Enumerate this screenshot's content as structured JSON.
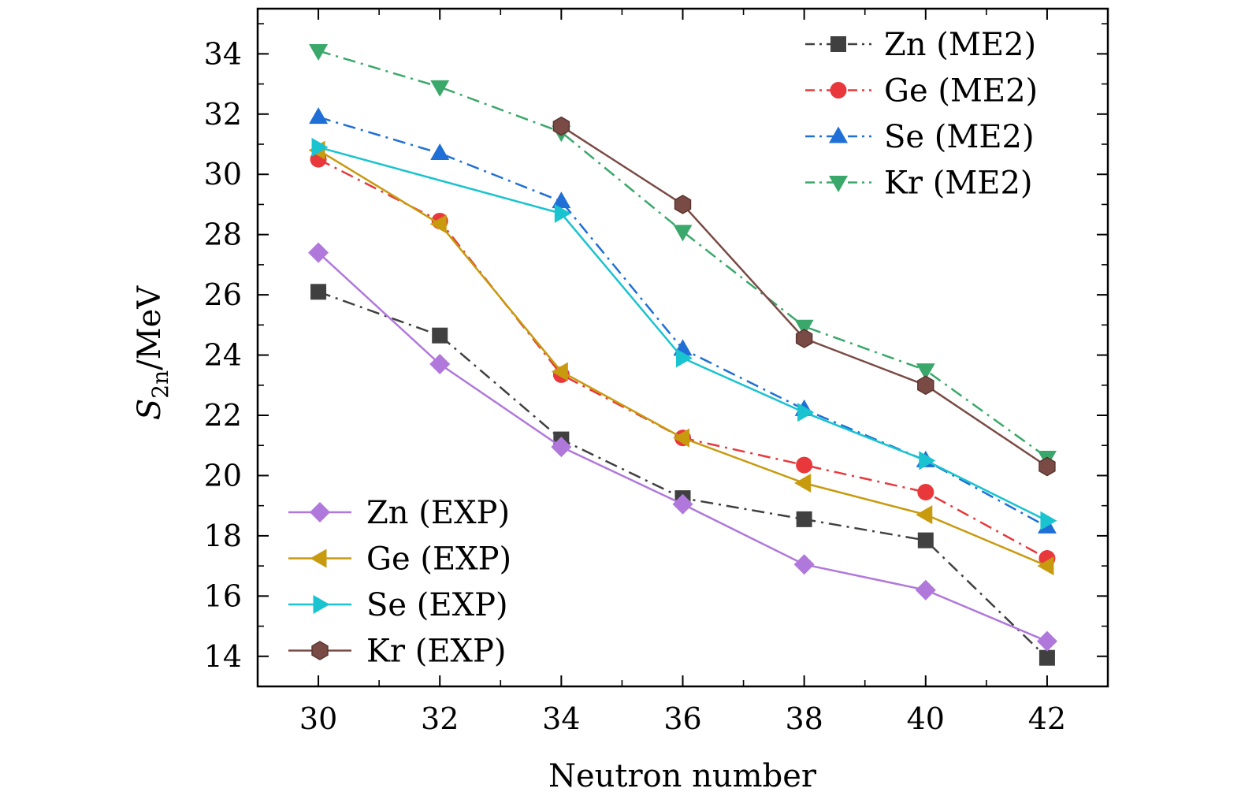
{
  "chart_data": {
    "type": "line",
    "xlabel": "Neutron number",
    "ylabel": {
      "main": "S",
      "sub": "2n",
      "unit": "/MeV"
    },
    "xlim": [
      29,
      43
    ],
    "ylim": [
      13,
      35.5
    ],
    "xticks": [
      30,
      32,
      34,
      36,
      38,
      40,
      42
    ],
    "yticks": [
      14,
      16,
      18,
      20,
      22,
      24,
      26,
      28,
      30,
      32,
      34
    ],
    "x": [
      30,
      32,
      34,
      36,
      38,
      40,
      42
    ],
    "grid": false,
    "legends": [
      {
        "placement": "top-right",
        "entries": [
          "Zn (ME2)",
          "Ge (ME2)",
          "Se (ME2)",
          "Kr (ME2)"
        ]
      },
      {
        "placement": "bottom-left",
        "entries": [
          "Zn (EXP)",
          "Ge (EXP)",
          "Se (EXP)",
          "Kr (EXP)"
        ]
      }
    ],
    "series": [
      {
        "name": "Zn (ME2)",
        "color": "#404040",
        "line": "dashdot",
        "marker": "square",
        "values": [
          26.1,
          24.65,
          21.2,
          19.25,
          18.55,
          17.85,
          13.95
        ]
      },
      {
        "name": "Ge (ME2)",
        "color": "#e8383b",
        "line": "dashdot",
        "marker": "circle",
        "values": [
          30.5,
          28.45,
          23.35,
          21.25,
          20.35,
          19.45,
          17.25
        ]
      },
      {
        "name": "Se (ME2)",
        "color": "#1f6fd6",
        "line": "dashdot",
        "marker": "triangle-up",
        "values": [
          31.9,
          30.7,
          29.1,
          24.2,
          22.2,
          20.5,
          18.3
        ]
      },
      {
        "name": "Kr (ME2)",
        "color": "#3aa86a",
        "line": "dashdot",
        "marker": "triangle-down",
        "values": [
          34.1,
          32.9,
          31.4,
          28.1,
          24.95,
          23.5,
          20.6
        ]
      },
      {
        "name": "Zn (EXP)",
        "color": "#b078db",
        "line": "solid",
        "marker": "diamond",
        "values": [
          27.4,
          23.7,
          20.95,
          19.05,
          17.05,
          16.2,
          14.5
        ]
      },
      {
        "name": "Ge (EXP)",
        "color": "#c89a0e",
        "line": "solid",
        "marker": "triangle-left",
        "values": [
          30.8,
          28.35,
          23.45,
          21.25,
          19.75,
          18.7,
          17.0
        ]
      },
      {
        "name": "Se (EXP)",
        "color": "#19c3cf",
        "line": "solid",
        "marker": "triangle-right",
        "values": [
          30.9,
          null,
          28.7,
          23.9,
          22.1,
          20.5,
          18.5
        ]
      },
      {
        "name": "Kr (EXP)",
        "color": "#7a4b45",
        "line": "solid",
        "marker": "hexagon",
        "values": [
          null,
          null,
          31.6,
          29.0,
          24.55,
          23.0,
          20.3
        ]
      }
    ]
  }
}
